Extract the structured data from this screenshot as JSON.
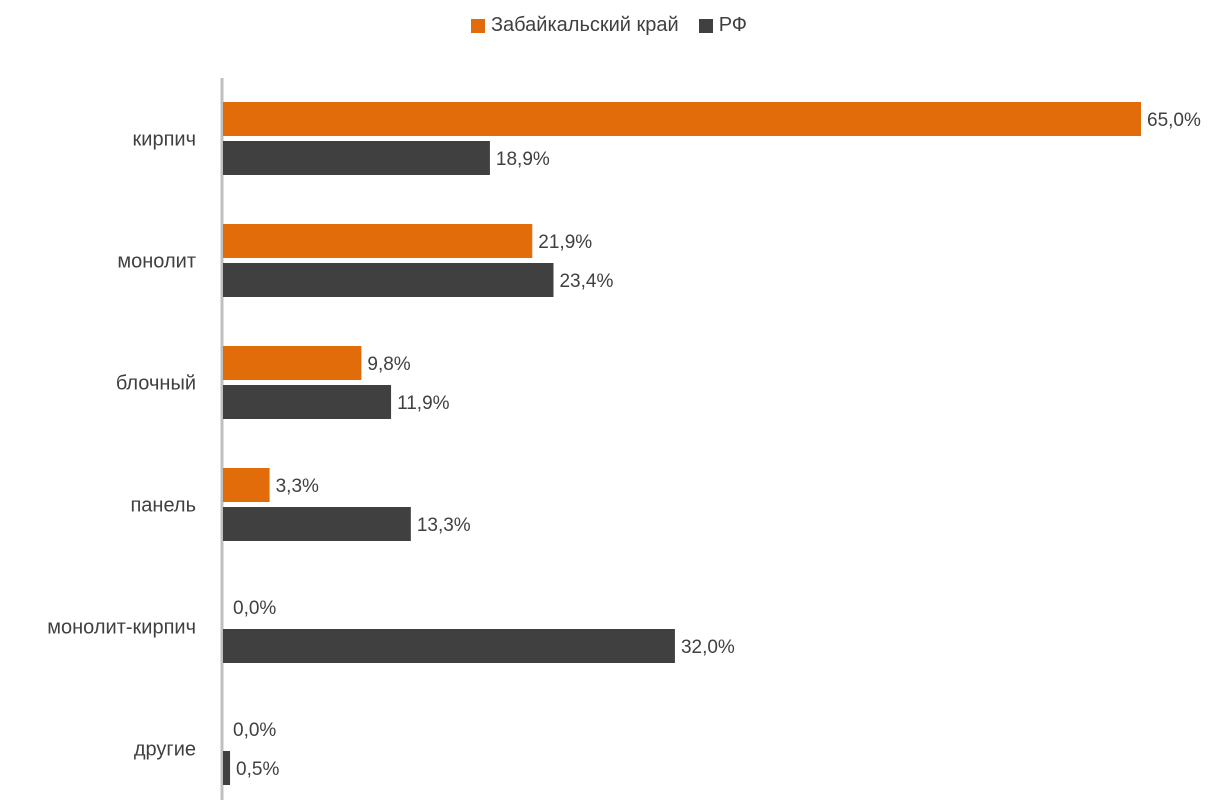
{
  "chart_data": {
    "type": "bar",
    "orientation": "horizontal",
    "categories": [
      "кирпич",
      "монолит",
      "блочный",
      "панель",
      "монолит-кирпич",
      "другие"
    ],
    "series": [
      {
        "name": "Забайкальский край",
        "color": "#E36C0A",
        "values": [
          65.0,
          21.9,
          9.8,
          3.3,
          0.0,
          0.0
        ],
        "labels": [
          "65,0%",
          "21,9%",
          "9,8%",
          "3,3%",
          "0,0%",
          "0,0%"
        ]
      },
      {
        "name": "РФ",
        "color": "#404040",
        "values": [
          18.9,
          23.4,
          11.9,
          13.3,
          32.0,
          0.5
        ],
        "labels": [
          "18,9%",
          "23,4%",
          "11,9%",
          "13,3%",
          "32,0%",
          "0,5%"
        ]
      }
    ],
    "xlim": [
      0,
      65
    ],
    "legend_position": "top",
    "grid": false
  }
}
